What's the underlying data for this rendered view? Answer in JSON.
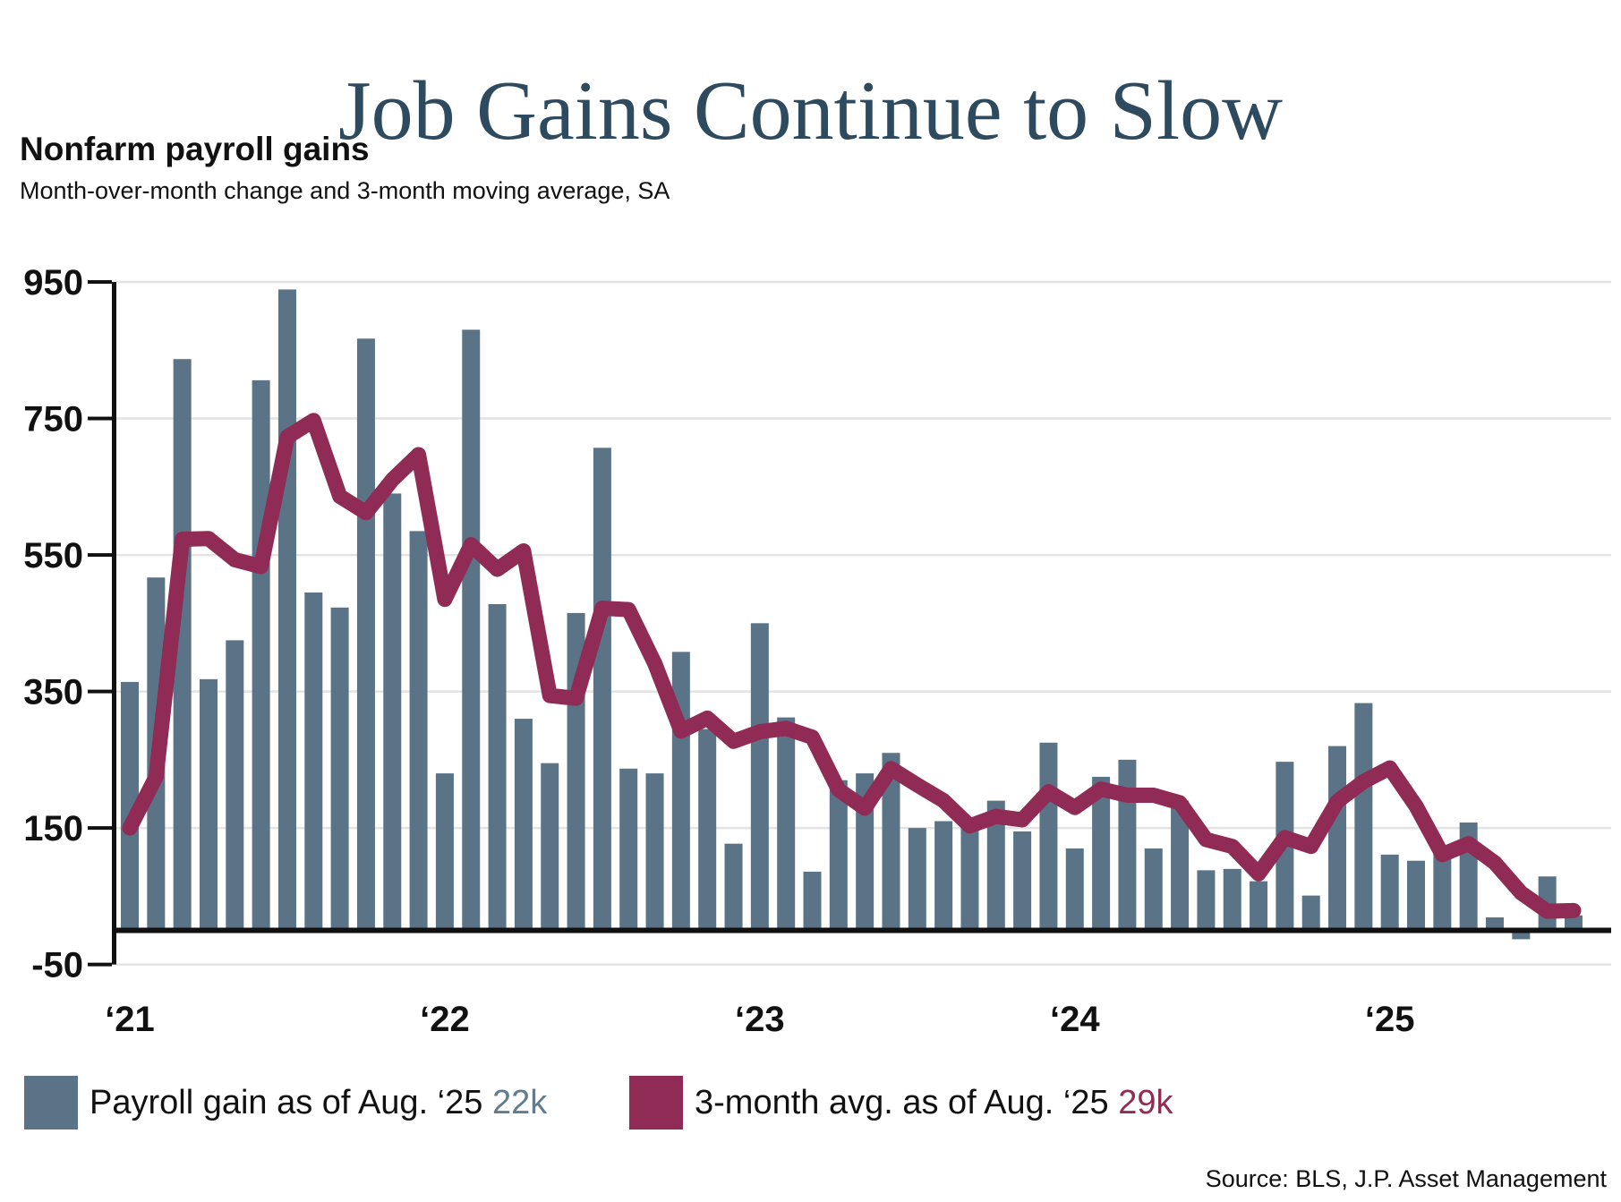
{
  "title": "Job Gains Continue to Slow",
  "subtitle": "Nonfarm payroll gains",
  "description": "Month-over-month change and 3-month moving average, SA",
  "source": "Source: BLS, J.P. Asset Management",
  "legend": {
    "bar_label": "Payroll gain as of Aug. ‘25",
    "bar_value": "22k",
    "line_label": "3-month avg. as of Aug. ‘25",
    "line_value": "29k"
  },
  "colors": {
    "title": "#2d4a5e",
    "bar": "#5a7386",
    "barvalue": "#5f7d91",
    "line": "#8f2b54",
    "grid": "#e3e3e3",
    "axis": "#111111"
  },
  "chart_data": {
    "type": "bar",
    "title": "Nonfarm payroll gains",
    "xlabel": "",
    "ylabel": "",
    "ylim": [
      -50,
      950
    ],
    "yticks": [
      950,
      750,
      550,
      350,
      150,
      -50
    ],
    "grid": true,
    "legend_position": "bottom",
    "x": [
      "2021-01",
      "2021-02",
      "2021-03",
      "2021-04",
      "2021-05",
      "2021-06",
      "2021-07",
      "2021-08",
      "2021-09",
      "2021-10",
      "2021-11",
      "2021-12",
      "2022-01",
      "2022-02",
      "2022-03",
      "2022-04",
      "2022-05",
      "2022-06",
      "2022-07",
      "2022-08",
      "2022-09",
      "2022-10",
      "2022-11",
      "2022-12",
      "2023-01",
      "2023-02",
      "2023-03",
      "2023-04",
      "2023-05",
      "2023-06",
      "2023-07",
      "2023-08",
      "2023-09",
      "2023-10",
      "2023-11",
      "2023-12",
      "2024-01",
      "2024-02",
      "2024-03",
      "2024-04",
      "2024-05",
      "2024-06",
      "2024-07",
      "2024-08",
      "2024-09",
      "2024-10",
      "2024-11",
      "2024-12",
      "2025-01",
      "2025-02",
      "2025-03",
      "2025-04",
      "2025-05",
      "2025-06",
      "2025-07",
      "2025-08"
    ],
    "year_ticks": [
      "‘21",
      "‘22",
      "‘23",
      "‘24",
      "‘25"
    ],
    "year_tick_months": [
      0,
      12,
      24,
      36,
      48
    ],
    "series": [
      {
        "name": "Payroll gain as of Aug. ‘25",
        "type": "bar",
        "values": [
          364,
          517,
          837,
          368,
          425,
          806,
          939,
          495,
          473,
          867,
          640,
          585,
          230,
          880,
          478,
          310,
          245,
          465,
          707,
          237,
          230,
          408,
          295,
          127,
          450,
          312,
          86,
          220,
          230,
          260,
          150,
          160,
          150,
          190,
          145,
          275,
          120,
          225,
          250,
          120,
          190,
          88,
          90,
          72,
          247,
          51,
          270,
          333,
          111,
          102,
          120,
          158,
          19,
          -13,
          79,
          22
        ]
      },
      {
        "name": "3-month avg. as of Aug. ‘25",
        "type": "line",
        "values": [
          150,
          225,
          573,
          574,
          543,
          533,
          723,
          747,
          636,
          612,
          660,
          697,
          485,
          565,
          529,
          556,
          344,
          340,
          472,
          470,
          391,
          292,
          311,
          277,
          291,
          296,
          283,
          206,
          179,
          237,
          213,
          190,
          153,
          167,
          162,
          203,
          180,
          207,
          198,
          198,
          187,
          133,
          123,
          83,
          136,
          123,
          189,
          218,
          238,
          182,
          111,
          127,
          99,
          55,
          28,
          29
        ]
      }
    ]
  }
}
